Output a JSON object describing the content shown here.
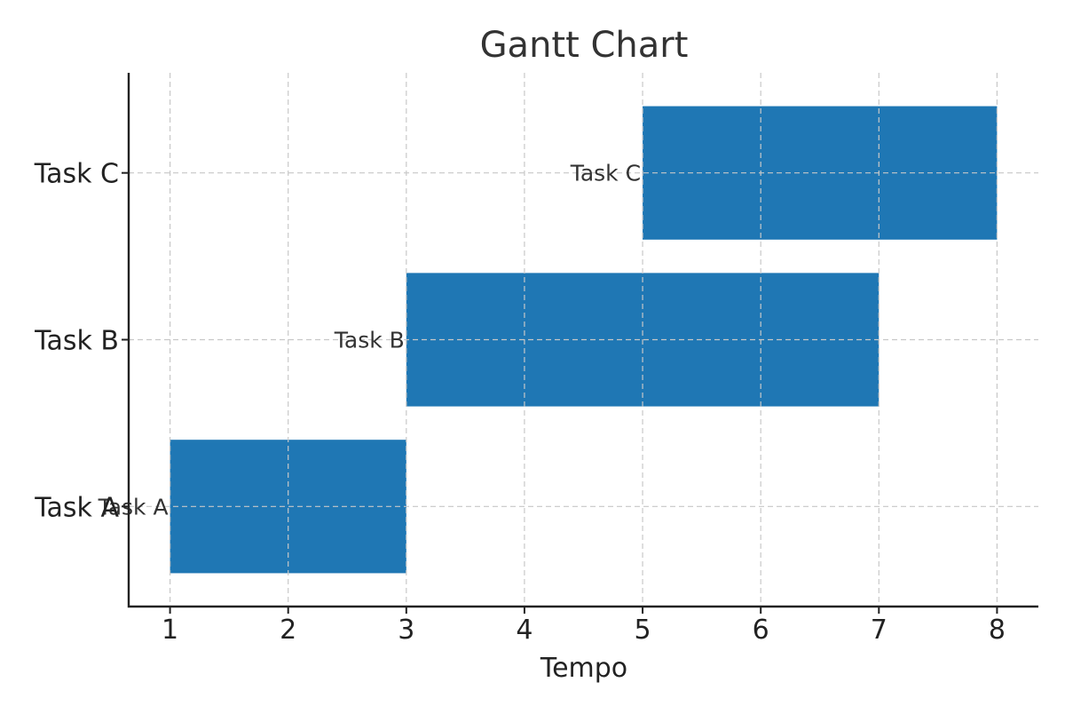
{
  "chart_data": {
    "type": "bar",
    "orientation": "horizontal",
    "title": "Gantt Chart",
    "xlabel": "Tempo",
    "ylabel": "",
    "xlim": [
      0.65,
      8.35
    ],
    "xticks": [
      1,
      2,
      3,
      4,
      5,
      6,
      7,
      8
    ],
    "categories": [
      "Task A",
      "Task B",
      "Task C"
    ],
    "tasks": [
      {
        "name": "Task A",
        "start": 1,
        "end": 3
      },
      {
        "name": "Task B",
        "start": 3,
        "end": 7
      },
      {
        "name": "Task C",
        "start": 5,
        "end": 8
      }
    ],
    "grid": true,
    "bar_color": "#1f77b4"
  }
}
